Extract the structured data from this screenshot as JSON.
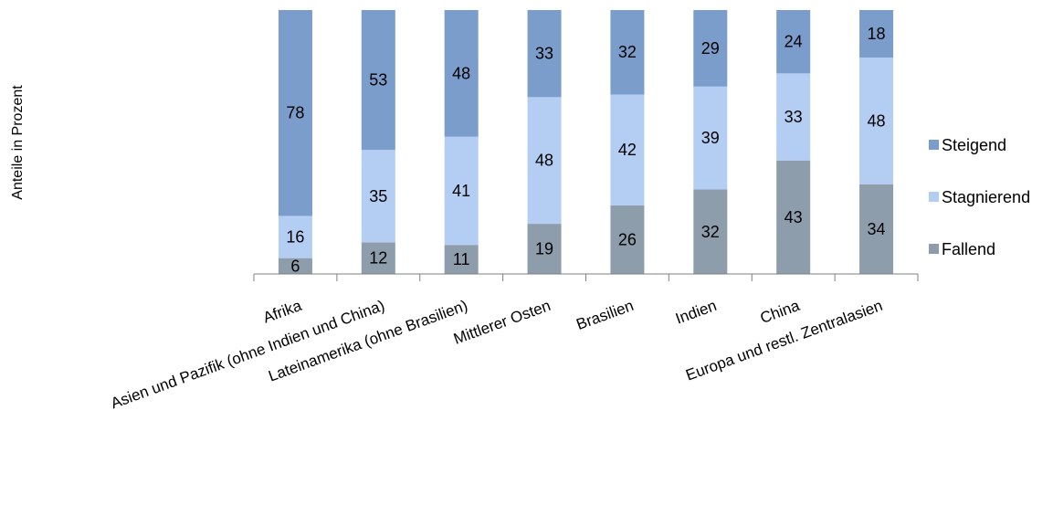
{
  "chart_data": {
    "type": "bar",
    "stacked": true,
    "percent_stacked": true,
    "title": "",
    "xlabel": "",
    "ylabel": "Anteile in Prozent",
    "ylim": [
      0,
      100
    ],
    "grid": false,
    "legend_position": "right",
    "categories": [
      "Afrika",
      "Asien und Pazifik (ohne Indien und China)",
      "Lateinamerika (ohne Brasilien)",
      "Mittlerer Osten",
      "Brasilien",
      "Indien",
      "China",
      "Europa und restl. Zentralasien"
    ],
    "series": [
      {
        "name": "Fallend",
        "color": "#8e9dab",
        "values": [
          6,
          12,
          11,
          19,
          26,
          32,
          43,
          34
        ]
      },
      {
        "name": "Stagnierend",
        "color": "#b3cdf3",
        "values": [
          16,
          35,
          41,
          48,
          42,
          39,
          33,
          48
        ]
      },
      {
        "name": "Steigend",
        "color": "#7b9dcb",
        "values": [
          78,
          53,
          48,
          33,
          32,
          29,
          24,
          18
        ]
      }
    ],
    "legend_order": [
      "Steigend",
      "Stagnierend",
      "Fallend"
    ]
  }
}
